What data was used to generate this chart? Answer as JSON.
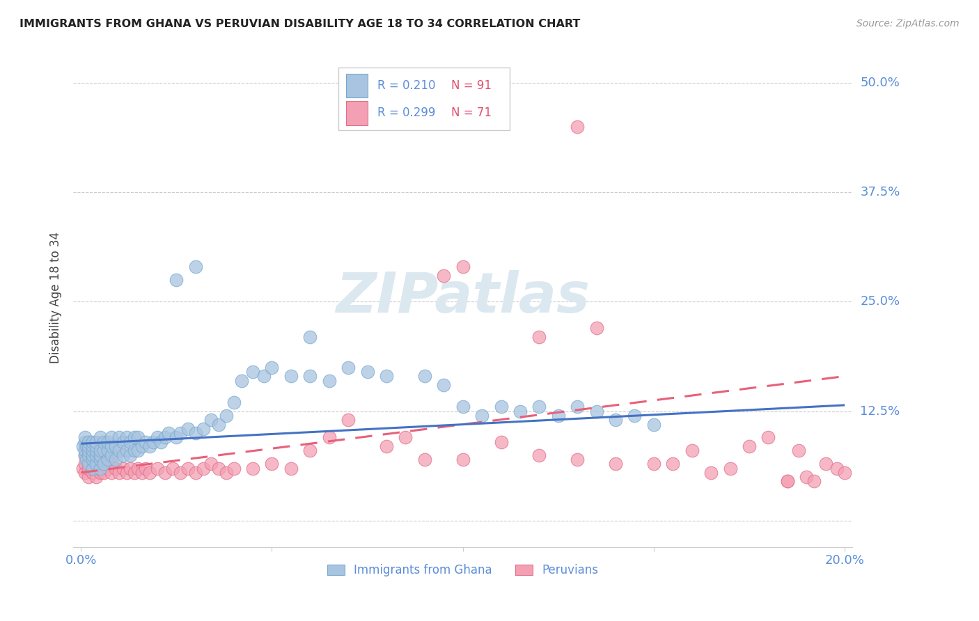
{
  "title": "IMMIGRANTS FROM GHANA VS PERUVIAN DISABILITY AGE 18 TO 34 CORRELATION CHART",
  "source": "Source: ZipAtlas.com",
  "ylabel": "Disability Age 18 to 34",
  "xlim": [
    0.0,
    0.2
  ],
  "ylim": [
    -0.03,
    0.54
  ],
  "yticks": [
    0.0,
    0.125,
    0.25,
    0.375,
    0.5
  ],
  "ytick_labels": [
    "",
    "12.5%",
    "25.0%",
    "37.5%",
    "50.0%"
  ],
  "xticks": [
    0.0,
    0.05,
    0.1,
    0.15,
    0.2
  ],
  "xtick_labels": [
    "0.0%",
    "",
    "",
    "",
    "20.0%"
  ],
  "ghana_color": "#a8c4e0",
  "ghana_edge": "#7aaad0",
  "peru_color": "#f4a0b4",
  "peru_edge": "#e0708a",
  "line_blue": "#4472c4",
  "line_pink": "#e8607a",
  "watermark_color": "#dce8f0",
  "ghana_slope": 0.22,
  "ghana_intercept": 0.088,
  "peru_slope": 0.55,
  "peru_intercept": 0.055,
  "ghana_x": [
    0.0005,
    0.001,
    0.001,
    0.001,
    0.001,
    0.0015,
    0.0015,
    0.002,
    0.002,
    0.002,
    0.002,
    0.002,
    0.003,
    0.003,
    0.003,
    0.003,
    0.003,
    0.003,
    0.004,
    0.004,
    0.004,
    0.004,
    0.004,
    0.005,
    0.005,
    0.005,
    0.005,
    0.005,
    0.006,
    0.006,
    0.006,
    0.007,
    0.007,
    0.007,
    0.008,
    0.008,
    0.008,
    0.009,
    0.009,
    0.01,
    0.01,
    0.011,
    0.011,
    0.012,
    0.012,
    0.013,
    0.013,
    0.014,
    0.014,
    0.015,
    0.015,
    0.016,
    0.017,
    0.018,
    0.019,
    0.02,
    0.021,
    0.022,
    0.023,
    0.025,
    0.026,
    0.028,
    0.03,
    0.032,
    0.034,
    0.036,
    0.038,
    0.04,
    0.042,
    0.045,
    0.048,
    0.05,
    0.055,
    0.06,
    0.065,
    0.07,
    0.075,
    0.08,
    0.09,
    0.095,
    0.1,
    0.105,
    0.11,
    0.115,
    0.12,
    0.125,
    0.13,
    0.135,
    0.14,
    0.145,
    0.15
  ],
  "ghana_y": [
    0.085,
    0.075,
    0.08,
    0.09,
    0.095,
    0.07,
    0.085,
    0.065,
    0.075,
    0.08,
    0.085,
    0.09,
    0.06,
    0.07,
    0.075,
    0.08,
    0.085,
    0.09,
    0.065,
    0.075,
    0.08,
    0.085,
    0.09,
    0.06,
    0.07,
    0.075,
    0.08,
    0.095,
    0.065,
    0.08,
    0.09,
    0.07,
    0.08,
    0.09,
    0.075,
    0.085,
    0.095,
    0.07,
    0.085,
    0.08,
    0.095,
    0.075,
    0.09,
    0.08,
    0.095,
    0.075,
    0.09,
    0.08,
    0.095,
    0.08,
    0.095,
    0.085,
    0.09,
    0.085,
    0.09,
    0.095,
    0.09,
    0.095,
    0.1,
    0.095,
    0.1,
    0.105,
    0.1,
    0.105,
    0.115,
    0.11,
    0.12,
    0.135,
    0.16,
    0.17,
    0.165,
    0.175,
    0.165,
    0.165,
    0.16,
    0.175,
    0.17,
    0.165,
    0.165,
    0.155,
    0.13,
    0.12,
    0.13,
    0.125,
    0.13,
    0.12,
    0.13,
    0.125,
    0.115,
    0.12,
    0.11
  ],
  "peru_x": [
    0.0005,
    0.001,
    0.001,
    0.001,
    0.002,
    0.002,
    0.002,
    0.003,
    0.003,
    0.003,
    0.004,
    0.004,
    0.004,
    0.005,
    0.005,
    0.005,
    0.006,
    0.006,
    0.007,
    0.007,
    0.008,
    0.008,
    0.009,
    0.01,
    0.011,
    0.012,
    0.013,
    0.014,
    0.015,
    0.016,
    0.017,
    0.018,
    0.02,
    0.022,
    0.024,
    0.026,
    0.028,
    0.03,
    0.032,
    0.034,
    0.036,
    0.038,
    0.04,
    0.045,
    0.05,
    0.055,
    0.06,
    0.065,
    0.07,
    0.08,
    0.085,
    0.09,
    0.1,
    0.11,
    0.12,
    0.13,
    0.14,
    0.15,
    0.155,
    0.16,
    0.165,
    0.17,
    0.175,
    0.18,
    0.185,
    0.188,
    0.19,
    0.192,
    0.195,
    0.198,
    0.2
  ],
  "peru_y": [
    0.06,
    0.055,
    0.065,
    0.075,
    0.05,
    0.06,
    0.075,
    0.055,
    0.065,
    0.075,
    0.05,
    0.06,
    0.07,
    0.055,
    0.065,
    0.075,
    0.055,
    0.065,
    0.06,
    0.07,
    0.055,
    0.065,
    0.06,
    0.055,
    0.06,
    0.055,
    0.06,
    0.055,
    0.06,
    0.055,
    0.06,
    0.055,
    0.06,
    0.055,
    0.06,
    0.055,
    0.06,
    0.055,
    0.06,
    0.065,
    0.06,
    0.055,
    0.06,
    0.06,
    0.065,
    0.06,
    0.08,
    0.095,
    0.115,
    0.085,
    0.095,
    0.07,
    0.07,
    0.09,
    0.075,
    0.07,
    0.065,
    0.065,
    0.065,
    0.08,
    0.055,
    0.06,
    0.085,
    0.095,
    0.045,
    0.08,
    0.05,
    0.045,
    0.065,
    0.06,
    0.055
  ],
  "peru_outlier_x": [
    0.13
  ],
  "peru_outlier_y": [
    0.45
  ]
}
